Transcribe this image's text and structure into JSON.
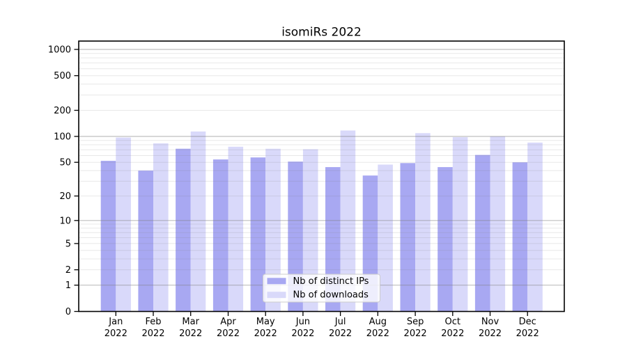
{
  "chart_data": {
    "type": "bar",
    "title": "isomiRs 2022",
    "categories": [
      "Jan 2022",
      "Feb 2022",
      "Mar 2022",
      "Apr 2022",
      "May 2022",
      "Jun 2022",
      "Jul 2022",
      "Aug 2022",
      "Sep 2022",
      "Oct 2022",
      "Nov 2022",
      "Dec 2022"
    ],
    "months": [
      "Jan",
      "Feb",
      "Mar",
      "Apr",
      "May",
      "Jun",
      "Jul",
      "Aug",
      "Sep",
      "Oct",
      "Nov",
      "Dec"
    ],
    "year_label": "2022",
    "series": [
      {
        "name": "Nb of distinct IPs",
        "color": "#a8a8f2",
        "values": [
          52,
          40,
          72,
          54,
          57,
          51,
          44,
          35,
          49,
          44,
          61,
          50
        ]
      },
      {
        "name": "Nb of downloads",
        "color": "#d9d9fa",
        "values": [
          97,
          83,
          114,
          76,
          72,
          71,
          117,
          47,
          109,
          98,
          100,
          85
        ]
      }
    ],
    "yticks": [
      0,
      1,
      2,
      5,
      10,
      20,
      50,
      100,
      200,
      500,
      1000
    ],
    "xlabel": "",
    "ylabel": "",
    "yscale": "log1p",
    "ylim": [
      0,
      1200
    ],
    "grid": {
      "major_at": [
        1,
        10,
        100,
        1000
      ],
      "minor_at": "2-9 multiples of each decade",
      "minor_below_one": false
    },
    "legend": {
      "position": "inside-bottom-center",
      "entries": [
        "Nb of distinct IPs",
        "Nb of downloads"
      ]
    },
    "colors": {
      "background": "#ffffff",
      "axis": "#000000",
      "major_grid": "#bdbdbd",
      "minor_grid": "#e9e9e9"
    }
  }
}
